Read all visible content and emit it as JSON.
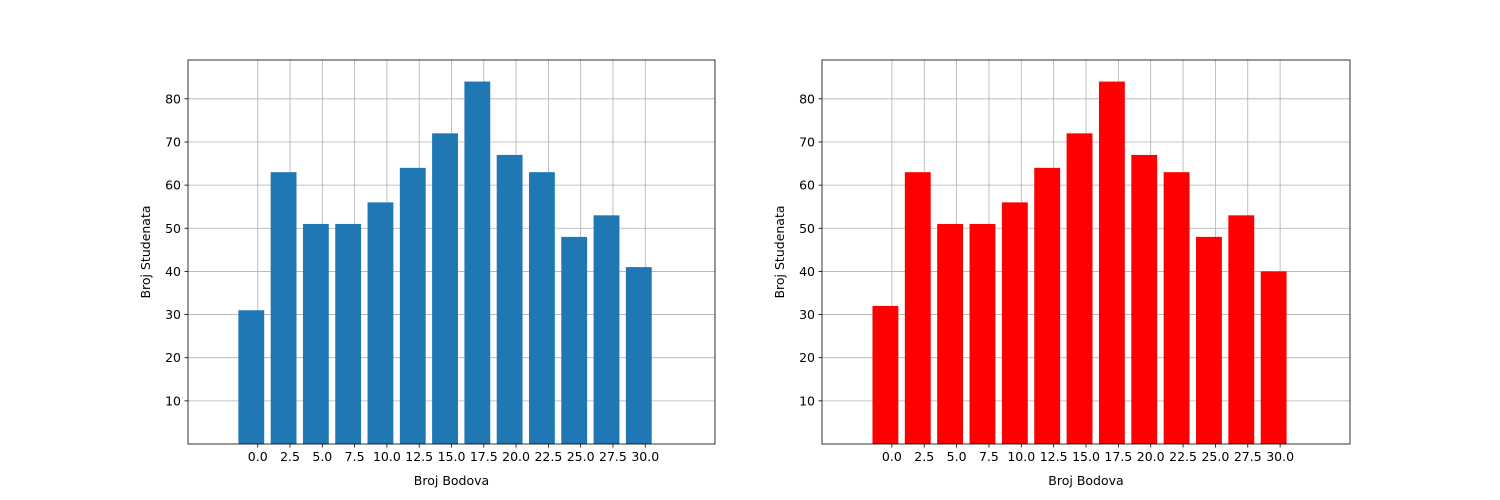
{
  "chart_data": [
    {
      "type": "bar",
      "x": [
        -0.5,
        2,
        4.5,
        7,
        9.5,
        12,
        14.5,
        17,
        19.5,
        22,
        24.5,
        27,
        29.5
      ],
      "values": [
        31,
        63,
        51,
        51,
        56,
        64,
        72,
        84,
        67,
        63,
        48,
        53,
        41
      ],
      "bar_color": "#1f77b4",
      "xlabel": "Broj Bodova",
      "ylabel": "Broj Studenata",
      "xticks": [
        "0.0",
        "2.5",
        "5.0",
        "7.5",
        "10.0",
        "12.5",
        "15.0",
        "17.5",
        "20.0",
        "22.5",
        "25.0",
        "27.5",
        "30.0"
      ],
      "yticks": [
        "10",
        "20",
        "30",
        "40",
        "50",
        "60",
        "70",
        "80"
      ],
      "xlim": [
        -5.4,
        35.4
      ],
      "ylim": [
        0,
        89
      ],
      "grid": true
    },
    {
      "type": "bar",
      "x": [
        -0.5,
        2,
        4.5,
        7,
        9.5,
        12,
        14.5,
        17,
        19.5,
        22,
        24.5,
        27,
        29.5
      ],
      "values": [
        32,
        63,
        51,
        51,
        56,
        64,
        72,
        84,
        67,
        63,
        48,
        53,
        40
      ],
      "bar_color": "#ff0000",
      "xlabel": "Broj Bodova",
      "ylabel": "Broj Studenata",
      "xticks": [
        "0.0",
        "2.5",
        "5.0",
        "7.5",
        "10.0",
        "12.5",
        "15.0",
        "17.5",
        "20.0",
        "22.5",
        "25.0",
        "27.5",
        "30.0"
      ],
      "yticks": [
        "10",
        "20",
        "30",
        "40",
        "50",
        "60",
        "70",
        "80"
      ],
      "xlim": [
        -5.4,
        35.4
      ],
      "ylim": [
        0,
        89
      ],
      "grid": true
    }
  ]
}
